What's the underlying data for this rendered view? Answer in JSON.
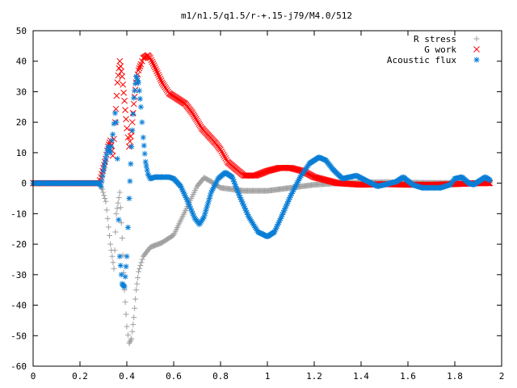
{
  "chart_data": {
    "type": "scatter",
    "title": "m1/n1.5/q1.5/r-+.15-j79/M4.0/512",
    "xlabel": "",
    "ylabel": "",
    "xlim": [
      0,
      2
    ],
    "ylim": [
      -60,
      50
    ],
    "x_ticks": [
      "0",
      "0.2",
      "0.4",
      "0.6",
      "0.8",
      "1",
      "1.2",
      "1.4",
      "1.6",
      "1.8",
      "2"
    ],
    "x_tick_values": [
      0,
      0.2,
      0.4,
      0.6,
      0.8,
      1,
      1.2,
      1.4,
      1.6,
      1.8,
      2
    ],
    "y_ticks": [
      "50",
      "40",
      "30",
      "20",
      "10",
      "0",
      "-10",
      "-20",
      "-30",
      "-40",
      "-50",
      "-60"
    ],
    "y_tick_values": [
      50,
      40,
      30,
      20,
      10,
      0,
      -10,
      -20,
      -30,
      -40,
      -50,
      -60
    ],
    "grid": false,
    "legend_position": "top-right",
    "series": [
      {
        "name": "R stress",
        "marker": "plus",
        "color": "#a0a0a0",
        "points": [
          [
            0.0,
            0
          ],
          [
            0.1,
            0
          ],
          [
            0.2,
            0
          ],
          [
            0.28,
            0
          ],
          [
            0.295,
            -2
          ],
          [
            0.31,
            -6
          ],
          [
            0.33,
            -20
          ],
          [
            0.345,
            -28
          ],
          [
            0.355,
            -10
          ],
          [
            0.37,
            -3
          ],
          [
            0.38,
            -18
          ],
          [
            0.39,
            -35
          ],
          [
            0.4,
            -47
          ],
          [
            0.41,
            -52.5
          ],
          [
            0.42,
            -51
          ],
          [
            0.43,
            -44
          ],
          [
            0.44,
            -35
          ],
          [
            0.45,
            -29
          ],
          [
            0.47,
            -24
          ],
          [
            0.5,
            -21
          ],
          [
            0.55,
            -19.5
          ],
          [
            0.6,
            -17
          ],
          [
            0.65,
            -9
          ],
          [
            0.7,
            -1
          ],
          [
            0.73,
            1.8
          ],
          [
            0.76,
            0.5
          ],
          [
            0.8,
            -1.5
          ],
          [
            0.9,
            -2.5
          ],
          [
            1.0,
            -2.5
          ],
          [
            1.05,
            -2
          ],
          [
            1.1,
            -1.5
          ],
          [
            1.2,
            -0.5
          ],
          [
            1.3,
            0
          ],
          [
            1.4,
            0.3
          ],
          [
            1.5,
            0.3
          ],
          [
            1.6,
            0.2
          ],
          [
            1.7,
            0.1
          ],
          [
            1.8,
            0.1
          ],
          [
            1.9,
            0.1
          ],
          [
            1.95,
            0.1
          ]
        ]
      },
      {
        "name": "G work",
        "marker": "cross",
        "color": "#ff0000",
        "points": [
          [
            0.0,
            0
          ],
          [
            0.1,
            0
          ],
          [
            0.2,
            0
          ],
          [
            0.28,
            0
          ],
          [
            0.29,
            2
          ],
          [
            0.3,
            5
          ],
          [
            0.31,
            8
          ],
          [
            0.32,
            12
          ],
          [
            0.33,
            14
          ],
          [
            0.34,
            9
          ],
          [
            0.35,
            20
          ],
          [
            0.36,
            33
          ],
          [
            0.37,
            40
          ],
          [
            0.38,
            35
          ],
          [
            0.39,
            27
          ],
          [
            0.4,
            18
          ],
          [
            0.41,
            12
          ],
          [
            0.42,
            17
          ],
          [
            0.43,
            26
          ],
          [
            0.44,
            33
          ],
          [
            0.45,
            37
          ],
          [
            0.46,
            39
          ],
          [
            0.47,
            41
          ],
          [
            0.48,
            41.5
          ],
          [
            0.49,
            42
          ],
          [
            0.5,
            41
          ],
          [
            0.52,
            38
          ],
          [
            0.55,
            33
          ],
          [
            0.58,
            29.5
          ],
          [
            0.62,
            27.5
          ],
          [
            0.65,
            26
          ],
          [
            0.68,
            23
          ],
          [
            0.72,
            18
          ],
          [
            0.75,
            15.5
          ],
          [
            0.78,
            13
          ],
          [
            0.8,
            11
          ],
          [
            0.83,
            7
          ],
          [
            0.86,
            5
          ],
          [
            0.9,
            2.5
          ],
          [
            0.95,
            2.5
          ],
          [
            1.0,
            4
          ],
          [
            1.05,
            5
          ],
          [
            1.1,
            5
          ],
          [
            1.15,
            4
          ],
          [
            1.2,
            2
          ],
          [
            1.3,
            0
          ],
          [
            1.4,
            -0.5
          ],
          [
            1.5,
            -0.3
          ],
          [
            1.6,
            -0.5
          ],
          [
            1.7,
            -0.5
          ],
          [
            1.8,
            -0.3
          ],
          [
            1.9,
            0
          ],
          [
            1.95,
            0
          ]
        ]
      },
      {
        "name": "Acoustic flux",
        "marker": "star",
        "color": "#0a7ed6",
        "points": [
          [
            0.0,
            0
          ],
          [
            0.1,
            0
          ],
          [
            0.2,
            0
          ],
          [
            0.28,
            0
          ],
          [
            0.29,
            -1
          ],
          [
            0.3,
            4
          ],
          [
            0.31,
            8
          ],
          [
            0.32,
            12
          ],
          [
            0.33,
            10
          ],
          [
            0.34,
            16
          ],
          [
            0.35,
            23
          ],
          [
            0.355,
            20
          ],
          [
            0.36,
            8
          ],
          [
            0.365,
            -12
          ],
          [
            0.37,
            -24
          ],
          [
            0.38,
            -33
          ],
          [
            0.39,
            -34
          ],
          [
            0.4,
            -24
          ],
          [
            0.41,
            -5
          ],
          [
            0.42,
            12
          ],
          [
            0.43,
            28
          ],
          [
            0.44,
            35
          ],
          [
            0.45,
            33
          ],
          [
            0.46,
            25
          ],
          [
            0.47,
            15
          ],
          [
            0.48,
            7
          ],
          [
            0.49,
            3
          ],
          [
            0.5,
            1.5
          ],
          [
            0.52,
            2
          ],
          [
            0.55,
            2
          ],
          [
            0.58,
            2
          ],
          [
            0.6,
            1.5
          ],
          [
            0.63,
            -1
          ],
          [
            0.66,
            -6
          ],
          [
            0.69,
            -11.5
          ],
          [
            0.71,
            -13.5
          ],
          [
            0.73,
            -11
          ],
          [
            0.76,
            -3
          ],
          [
            0.79,
            1.5
          ],
          [
            0.82,
            3.5
          ],
          [
            0.85,
            2
          ],
          [
            0.88,
            -4
          ],
          [
            0.92,
            -11
          ],
          [
            0.96,
            -16
          ],
          [
            1.0,
            -17.5
          ],
          [
            1.03,
            -16
          ],
          [
            1.06,
            -11
          ],
          [
            1.1,
            -4
          ],
          [
            1.14,
            2
          ],
          [
            1.18,
            6.5
          ],
          [
            1.22,
            8.5
          ],
          [
            1.25,
            7.5
          ],
          [
            1.28,
            4.5
          ],
          [
            1.32,
            1.5
          ],
          [
            1.38,
            2.5
          ],
          [
            1.43,
            0.5
          ],
          [
            1.47,
            -1
          ],
          [
            1.5,
            -0.5
          ],
          [
            1.55,
            0.5
          ],
          [
            1.58,
            2
          ],
          [
            1.62,
            -0.5
          ],
          [
            1.66,
            -1.5
          ],
          [
            1.7,
            -1.5
          ],
          [
            1.74,
            -1.5
          ],
          [
            1.78,
            -0.5
          ],
          [
            1.8,
            1.5
          ],
          [
            1.83,
            2
          ],
          [
            1.86,
            0
          ],
          [
            1.88,
            -0.5
          ],
          [
            1.91,
            1
          ],
          [
            1.93,
            2
          ],
          [
            1.95,
            1
          ]
        ]
      }
    ]
  }
}
